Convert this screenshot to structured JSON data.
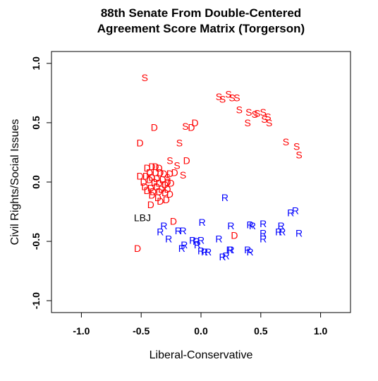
{
  "chart_data": {
    "type": "scatter",
    "title": [
      "88th Senate From Double-Centered",
      "Agreement Score Matrix (Torgerson)"
    ],
    "xlabel": "Liberal-Conservative",
    "ylabel": "Civil Rights/Social Issues",
    "xlim": [
      -1.25,
      1.25
    ],
    "ylim": [
      -1.1,
      1.1
    ],
    "x_ticks": [
      "-1.0",
      "-0.5",
      "0.0",
      "0.5",
      "1.0"
    ],
    "x_tick_values": [
      -1.0,
      -0.5,
      0.0,
      0.5,
      1.0
    ],
    "y_ticks": [
      "-1.0",
      "-0.5",
      "0.0",
      "0.5",
      "1.0"
    ],
    "y_tick_values": [
      -1.0,
      -0.5,
      0.0,
      0.5,
      1.0
    ],
    "grid": false,
    "colors": {
      "S": "#ff0000",
      "D": "#ff0000",
      "R": "#0000ff",
      "LBJ": "#000000"
    },
    "series": [
      {
        "label": "S",
        "points": [
          [
            -0.47,
            0.88
          ],
          [
            0.15,
            0.72
          ],
          [
            0.18,
            0.7
          ],
          [
            0.23,
            0.74
          ],
          [
            0.26,
            0.71
          ],
          [
            0.3,
            0.71
          ],
          [
            0.32,
            0.61
          ],
          [
            0.4,
            0.59
          ],
          [
            0.45,
            0.57
          ],
          [
            0.47,
            0.58
          ],
          [
            0.52,
            0.59
          ],
          [
            0.53,
            0.53
          ],
          [
            0.56,
            0.55
          ],
          [
            0.57,
            0.5
          ],
          [
            0.39,
            0.5
          ],
          [
            -0.13,
            0.47
          ],
          [
            -0.18,
            0.33
          ],
          [
            -0.26,
            0.18
          ],
          [
            -0.2,
            0.14
          ],
          [
            0.71,
            0.34
          ],
          [
            0.8,
            0.3
          ],
          [
            0.82,
            0.23
          ],
          [
            -0.15,
            0.06
          ],
          [
            -0.28,
            0.04
          ]
        ]
      },
      {
        "label": "D",
        "points": [
          [
            -0.39,
            0.46
          ],
          [
            -0.08,
            0.46
          ],
          [
            -0.05,
            0.5
          ],
          [
            -0.51,
            0.33
          ],
          [
            -0.12,
            0.18
          ],
          [
            -0.45,
            0.12
          ],
          [
            -0.41,
            0.13
          ],
          [
            -0.38,
            0.13
          ],
          [
            -0.35,
            0.12
          ],
          [
            -0.43,
            0.08
          ],
          [
            -0.38,
            0.08
          ],
          [
            -0.34,
            0.08
          ],
          [
            -0.31,
            0.07
          ],
          [
            -0.26,
            0.07
          ],
          [
            -0.22,
            0.08
          ],
          [
            -0.51,
            0.05
          ],
          [
            -0.46,
            0.05
          ],
          [
            -0.41,
            0.04
          ],
          [
            -0.37,
            0.03
          ],
          [
            -0.32,
            0.02
          ],
          [
            -0.28,
            0.0
          ],
          [
            -0.48,
            0.0
          ],
          [
            -0.43,
            0.02
          ],
          [
            -0.39,
            0.0
          ],
          [
            -0.35,
            -0.01
          ],
          [
            -0.3,
            -0.02
          ],
          [
            -0.25,
            -0.01
          ],
          [
            -0.47,
            -0.04
          ],
          [
            -0.42,
            -0.05
          ],
          [
            -0.37,
            -0.04
          ],
          [
            -0.33,
            -0.06
          ],
          [
            -0.28,
            -0.06
          ],
          [
            -0.45,
            -0.07
          ],
          [
            -0.4,
            -0.08
          ],
          [
            -0.35,
            -0.08
          ],
          [
            -0.3,
            -0.09
          ],
          [
            -0.26,
            -0.1
          ],
          [
            -0.41,
            -0.11
          ],
          [
            -0.36,
            -0.13
          ],
          [
            -0.29,
            -0.15
          ],
          [
            -0.34,
            -0.16
          ],
          [
            -0.42,
            -0.19
          ],
          [
            -0.23,
            -0.33
          ],
          [
            0.28,
            -0.45
          ],
          [
            -0.53,
            -0.56
          ]
        ]
      },
      {
        "label": "R",
        "points": [
          [
            0.2,
            -0.13
          ],
          [
            0.79,
            -0.24
          ],
          [
            0.75,
            -0.26
          ],
          [
            0.01,
            -0.34
          ],
          [
            0.25,
            -0.37
          ],
          [
            0.41,
            -0.36
          ],
          [
            0.43,
            -0.37
          ],
          [
            0.52,
            -0.35
          ],
          [
            0.67,
            -0.37
          ],
          [
            -0.31,
            -0.37
          ],
          [
            -0.34,
            -0.42
          ],
          [
            -0.19,
            -0.41
          ],
          [
            -0.15,
            -0.41
          ],
          [
            0.52,
            -0.43
          ],
          [
            0.65,
            -0.42
          ],
          [
            0.68,
            -0.42
          ],
          [
            0.82,
            -0.43
          ],
          [
            -0.27,
            -0.48
          ],
          [
            -0.07,
            -0.49
          ],
          [
            -0.04,
            -0.5
          ],
          [
            0.0,
            -0.49
          ],
          [
            0.15,
            -0.48
          ],
          [
            0.52,
            -0.48
          ],
          [
            -0.14,
            -0.53
          ],
          [
            -0.16,
            -0.56
          ],
          [
            -0.03,
            -0.53
          ],
          [
            0.0,
            -0.58
          ],
          [
            0.03,
            -0.59
          ],
          [
            0.06,
            -0.59
          ],
          [
            0.24,
            -0.57
          ],
          [
            0.25,
            -0.57
          ],
          [
            0.39,
            -0.57
          ],
          [
            0.41,
            -0.59
          ],
          [
            0.18,
            -0.63
          ],
          [
            0.21,
            -0.62
          ]
        ]
      },
      {
        "label": "LBJ",
        "points": [
          [
            -0.49,
            -0.3
          ]
        ]
      }
    ]
  }
}
